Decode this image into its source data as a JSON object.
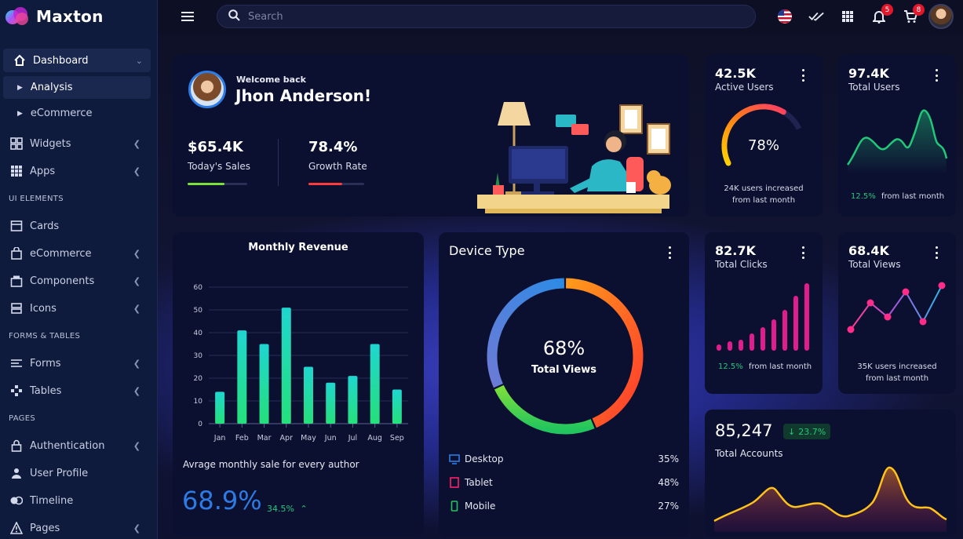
{
  "brand": {
    "name": "Maxton"
  },
  "sidebar": {
    "dashboard": "Dashboard",
    "analysis": "Analysis",
    "ecommerce_sub": "eCommerce",
    "widgets": "Widgets",
    "apps": "Apps",
    "section_ui": "UI ELEMENTS",
    "cards": "Cards",
    "ecommerce": "eCommerce",
    "components": "Components",
    "icons": "Icons",
    "section_forms": "FORMS & TABLES",
    "forms": "Forms",
    "tables": "Tables",
    "section_pages": "PAGES",
    "authentication": "Authentication",
    "user_profile": "User Profile",
    "timeline": "Timeline",
    "pages": "Pages"
  },
  "topbar": {
    "search_placeholder": "Search",
    "notifications_count": "5",
    "cart_count": "8"
  },
  "welcome": {
    "greeting": "Welcome back",
    "name": "Jhon Anderson!",
    "sales_value": "$65.4K",
    "sales_label": "Today's Sales",
    "sales_progress": 0.62,
    "growth_value": "78.4%",
    "growth_label": "Growth Rate",
    "growth_progress": 0.6
  },
  "active_users": {
    "value": "42.5K",
    "label": "Active Users",
    "gauge": "78%",
    "gauge_fraction": 0.78,
    "note1": "24K users increased",
    "note2": "from last month"
  },
  "total_users": {
    "value": "97.4K",
    "label": "Total Users",
    "change": "12.5%",
    "change_text": "from last month"
  },
  "total_clicks": {
    "value": "82.7K",
    "label": "Total Clicks",
    "change": "12.5%",
    "change_text": "from last month"
  },
  "total_views": {
    "value": "68.4K",
    "label": "Total Views",
    "note1": "35K users increased",
    "note2": "from last month"
  },
  "monthly_revenue": {
    "title": "Monthly Revenue",
    "footer": "Avrage monthly sale for every author",
    "big_value": "68.9%",
    "change": "34.5%"
  },
  "device_type": {
    "title": "Device Type",
    "center_value": "68%",
    "center_label": "Total Views",
    "items": [
      {
        "label": "Desktop",
        "value": "35%",
        "color": "#2d7be5"
      },
      {
        "label": "Tablet",
        "value": "48%",
        "color": "#ff1f6b"
      },
      {
        "label": "Mobile",
        "value": "27%",
        "color": "#22c55e"
      }
    ]
  },
  "total_accounts": {
    "value": "85,247",
    "change": "23.7%",
    "label": "Total Accounts"
  },
  "chart_data": [
    {
      "type": "bar",
      "title": "Monthly Revenue",
      "categories": [
        "Jan",
        "Feb",
        "Mar",
        "Apr",
        "May",
        "Jun",
        "Jul",
        "Aug",
        "Sep"
      ],
      "values": [
        14,
        41,
        35,
        51,
        25,
        18,
        21,
        35,
        15
      ],
      "ylim": [
        0,
        60
      ],
      "yticks": [
        0,
        10,
        20,
        30,
        40,
        50,
        60
      ],
      "grid": true
    },
    {
      "type": "pie",
      "title": "Device Type",
      "categories": [
        "Desktop",
        "Tablet",
        "Mobile"
      ],
      "values": [
        35,
        48,
        27
      ]
    }
  ]
}
